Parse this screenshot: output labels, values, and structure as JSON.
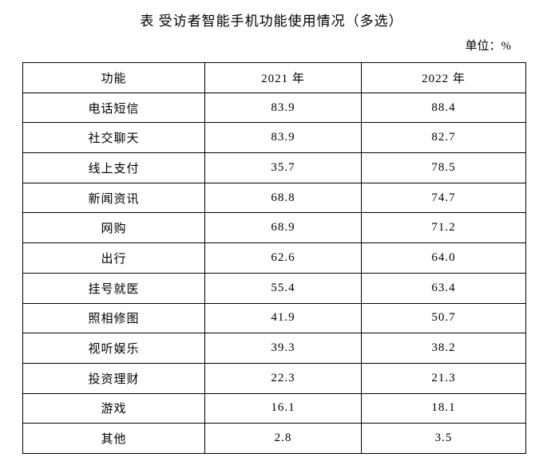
{
  "title": "表 受访者智能手机功能使用情况（多选）",
  "unit_label": "单位：%",
  "table": {
    "headers": [
      "功能",
      "2021 年",
      "2022 年"
    ],
    "rows": [
      {
        "label": "电话短信",
        "y2021": "83.9",
        "y2022": "88.4"
      },
      {
        "label": "社交聊天",
        "y2021": "83.9",
        "y2022": "82.7"
      },
      {
        "label": "线上支付",
        "y2021": "35.7",
        "y2022": "78.5"
      },
      {
        "label": "新闻资讯",
        "y2021": "68.8",
        "y2022": "74.7"
      },
      {
        "label": "网购",
        "y2021": "68.9",
        "y2022": "71.2"
      },
      {
        "label": "出行",
        "y2021": "62.6",
        "y2022": "64.0"
      },
      {
        "label": "挂号就医",
        "y2021": "55.4",
        "y2022": "63.4"
      },
      {
        "label": "照相修图",
        "y2021": "41.9",
        "y2022": "50.7"
      },
      {
        "label": "视听娱乐",
        "y2021": "39.3",
        "y2022": "38.2"
      },
      {
        "label": "投资理财",
        "y2021": "22.3",
        "y2022": "21.3"
      },
      {
        "label": "游戏",
        "y2021": "16.1",
        "y2022": "18.1"
      },
      {
        "label": "其他",
        "y2021": "2.8",
        "y2022": "3.5"
      }
    ]
  },
  "chart_data": {
    "type": "table",
    "title": "表 受访者智能手机功能使用情况（多选）",
    "unit": "%",
    "categories": [
      "电话短信",
      "社交聊天",
      "线上支付",
      "新闻资讯",
      "网购",
      "出行",
      "挂号就医",
      "照相修图",
      "视听娱乐",
      "投资理财",
      "游戏",
      "其他"
    ],
    "series": [
      {
        "name": "2021 年",
        "values": [
          83.9,
          83.9,
          35.7,
          68.8,
          68.9,
          62.6,
          55.4,
          41.9,
          39.3,
          22.3,
          16.1,
          2.8
        ]
      },
      {
        "name": "2022 年",
        "values": [
          88.4,
          82.7,
          78.5,
          74.7,
          71.2,
          64.0,
          63.4,
          50.7,
          38.2,
          21.3,
          18.1,
          3.5
        ]
      }
    ]
  }
}
